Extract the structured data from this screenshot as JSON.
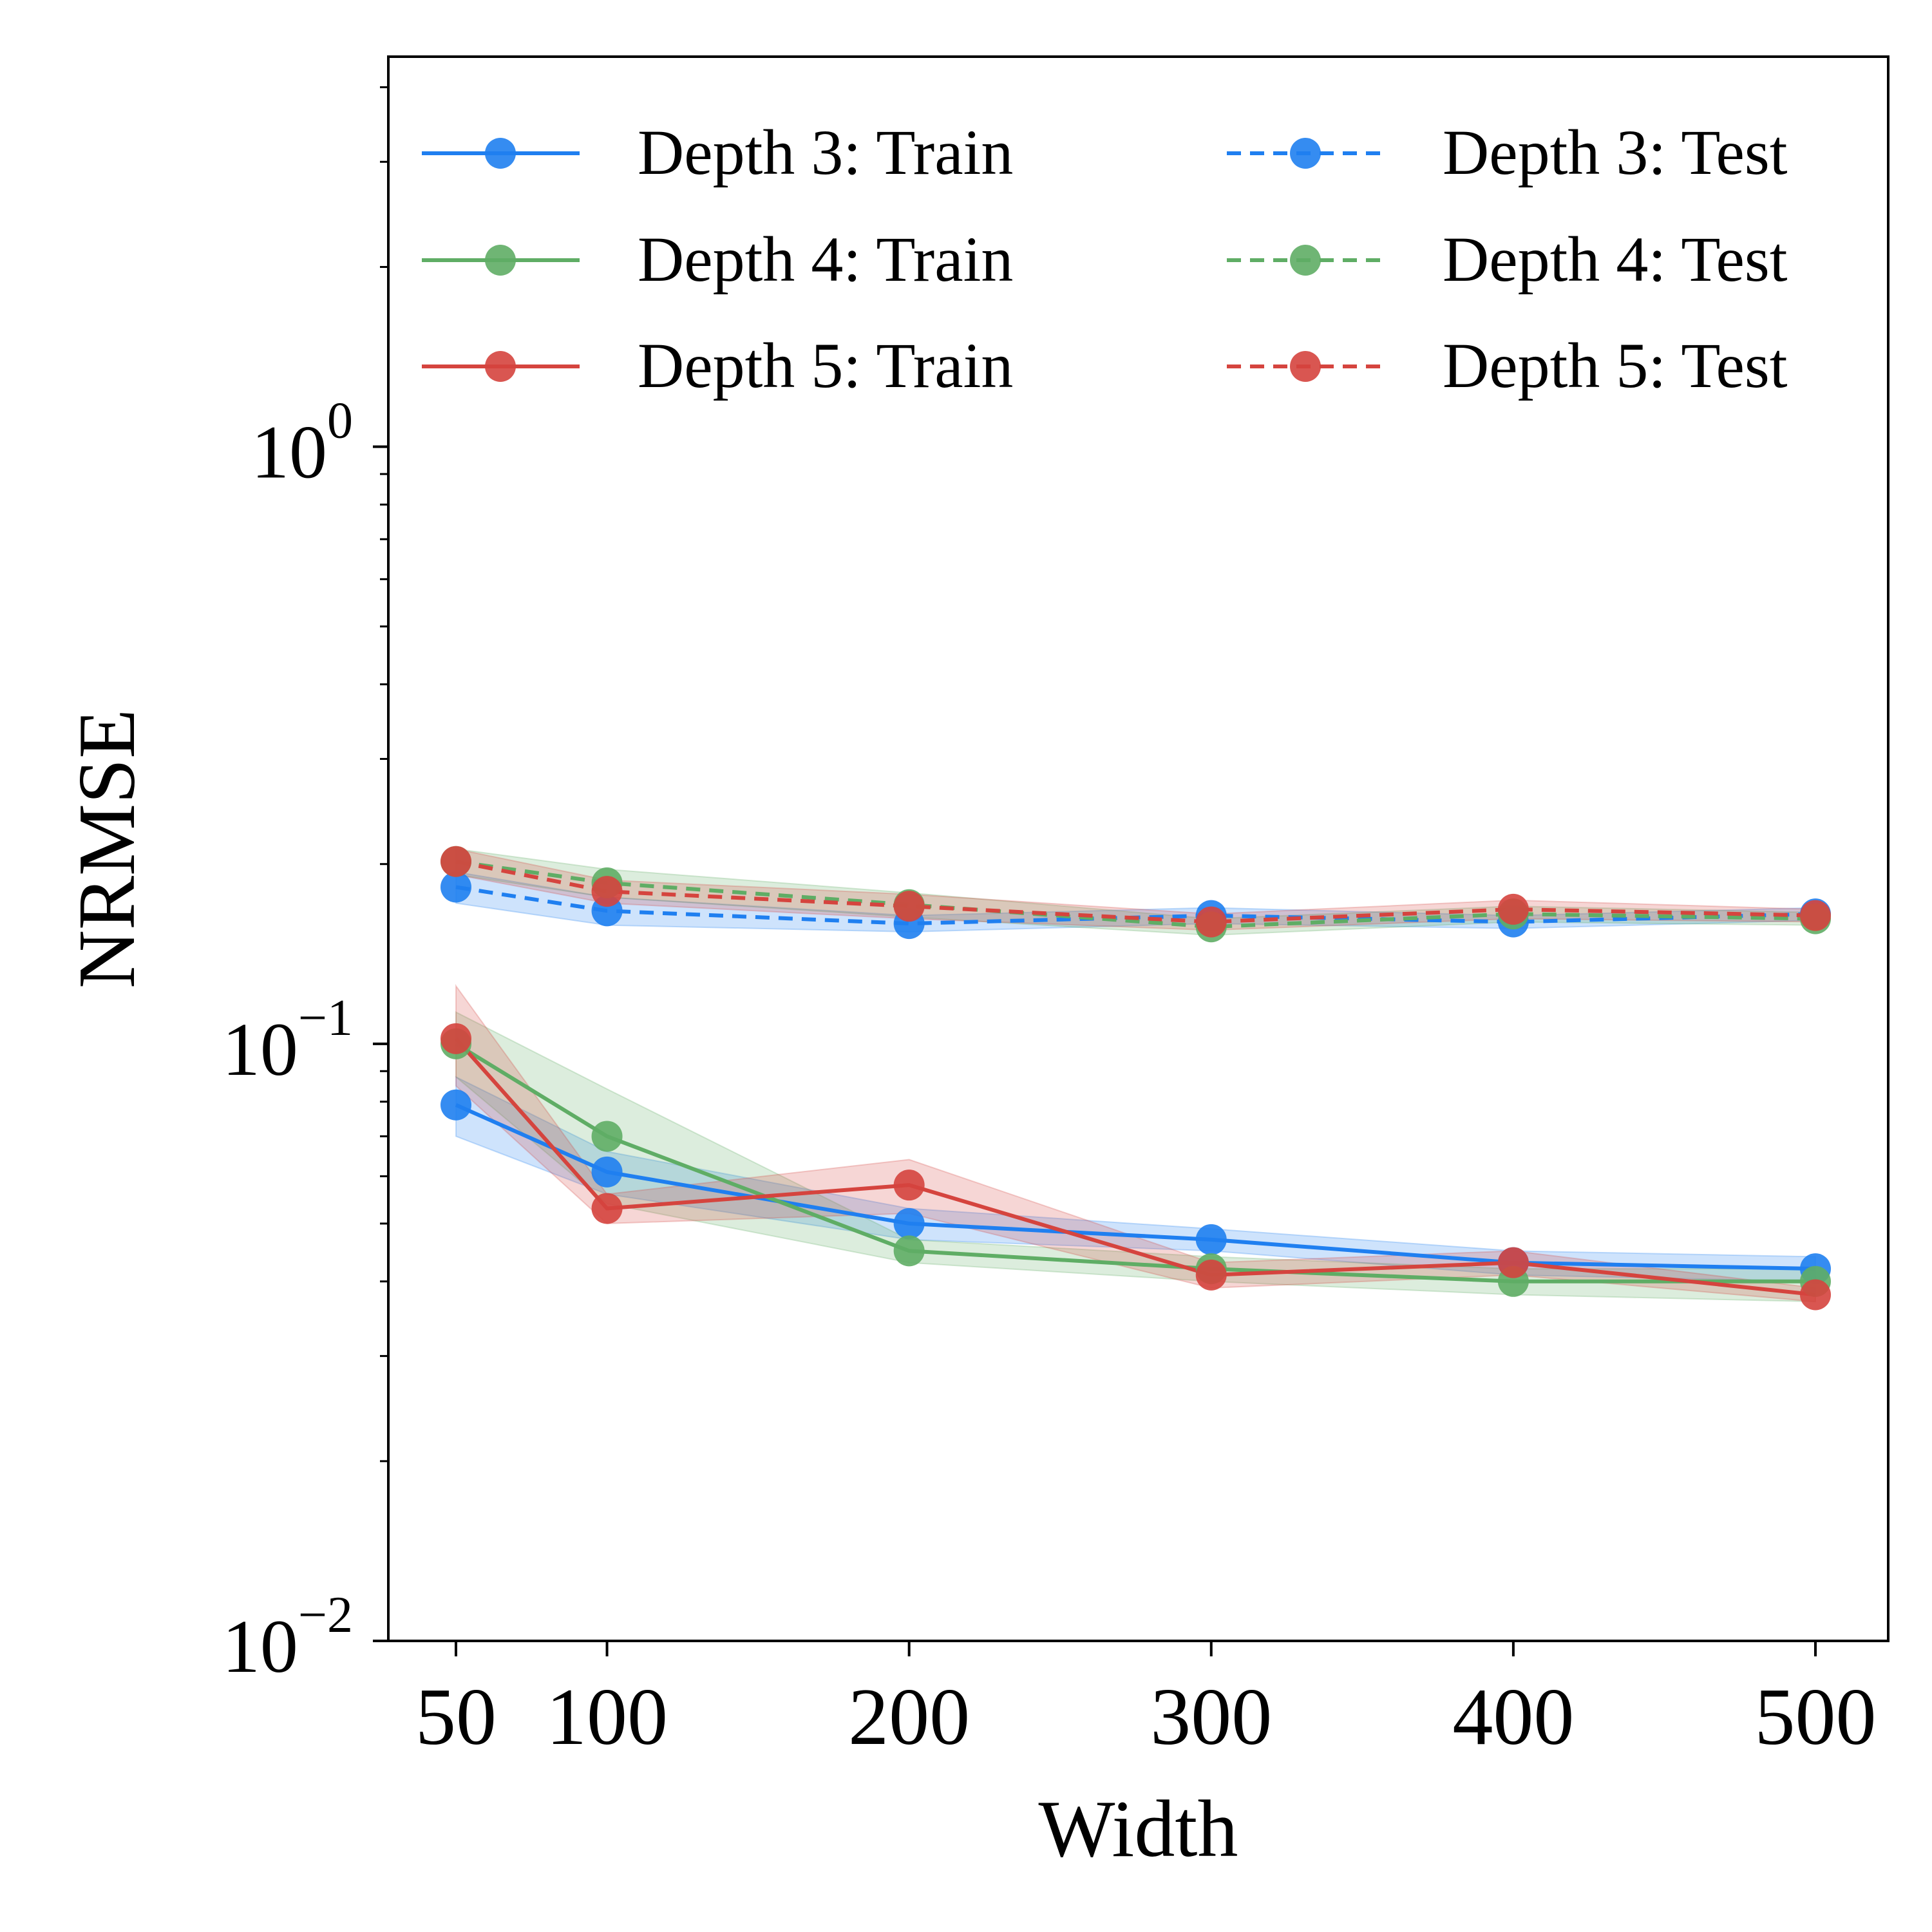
{
  "chart_data": {
    "type": "line",
    "xlabel": "Width",
    "ylabel": "NRMSE",
    "yscale": "log",
    "ylim": [
      0.01,
      4.5
    ],
    "x": [
      50,
      100,
      200,
      300,
      400,
      500
    ],
    "xticks": [
      "50",
      "100",
      "200",
      "300",
      "400",
      "500"
    ],
    "yticks": [
      {
        "value": 1,
        "base": "10",
        "exp": "0"
      },
      {
        "value": 0.1,
        "base": "10",
        "exp": "−1"
      },
      {
        "value": 0.01,
        "base": "10",
        "exp": "−2"
      }
    ],
    "legend_placement": "top",
    "series": [
      {
        "name": "Depth 3: Train",
        "color": "#1f7ff0",
        "style": "solid",
        "values": [
          0.079,
          0.061,
          0.05,
          0.047,
          0.043,
          0.042
        ],
        "band_low": [
          0.07,
          0.056,
          0.047,
          0.045,
          0.041,
          0.04
        ],
        "band_high": [
          0.088,
          0.066,
          0.053,
          0.049,
          0.045,
          0.044
        ]
      },
      {
        "name": "Depth 4: Train",
        "color": "#5fad65",
        "style": "solid",
        "values": [
          0.1,
          0.07,
          0.045,
          0.042,
          0.04,
          0.04
        ],
        "band_low": [
          0.088,
          0.054,
          0.043,
          0.04,
          0.038,
          0.037
        ],
        "band_high": [
          0.113,
          0.084,
          0.047,
          0.044,
          0.042,
          0.042
        ]
      },
      {
        "name": "Depth 5: Train",
        "color": "#d5443e",
        "style": "solid",
        "values": [
          0.102,
          0.053,
          0.058,
          0.041,
          0.043,
          0.038
        ],
        "band_low": [
          0.085,
          0.05,
          0.052,
          0.039,
          0.041,
          0.037
        ],
        "band_high": [
          0.125,
          0.056,
          0.064,
          0.043,
          0.045,
          0.039
        ]
      },
      {
        "name": "Depth 3: Test",
        "color": "#1f7ff0",
        "style": "dashed",
        "values": [
          0.183,
          0.167,
          0.159,
          0.164,
          0.16,
          0.165
        ],
        "band_low": [
          0.172,
          0.158,
          0.154,
          0.159,
          0.156,
          0.161
        ],
        "band_high": [
          0.194,
          0.176,
          0.164,
          0.169,
          0.164,
          0.169
        ]
      },
      {
        "name": "Depth 4: Test",
        "color": "#5fad65",
        "style": "dashed",
        "values": [
          0.202,
          0.186,
          0.171,
          0.157,
          0.165,
          0.162
        ],
        "band_low": [
          0.192,
          0.176,
          0.163,
          0.152,
          0.16,
          0.158
        ],
        "band_high": [
          0.212,
          0.196,
          0.179,
          0.162,
          0.17,
          0.166
        ]
      },
      {
        "name": "Depth 5: Test",
        "color": "#d5443e",
        "style": "dashed",
        "values": [
          0.202,
          0.18,
          0.17,
          0.16,
          0.168,
          0.164
        ],
        "band_low": [
          0.192,
          0.172,
          0.162,
          0.155,
          0.162,
          0.16
        ],
        "band_high": [
          0.212,
          0.188,
          0.178,
          0.165,
          0.174,
          0.168
        ]
      }
    ]
  }
}
